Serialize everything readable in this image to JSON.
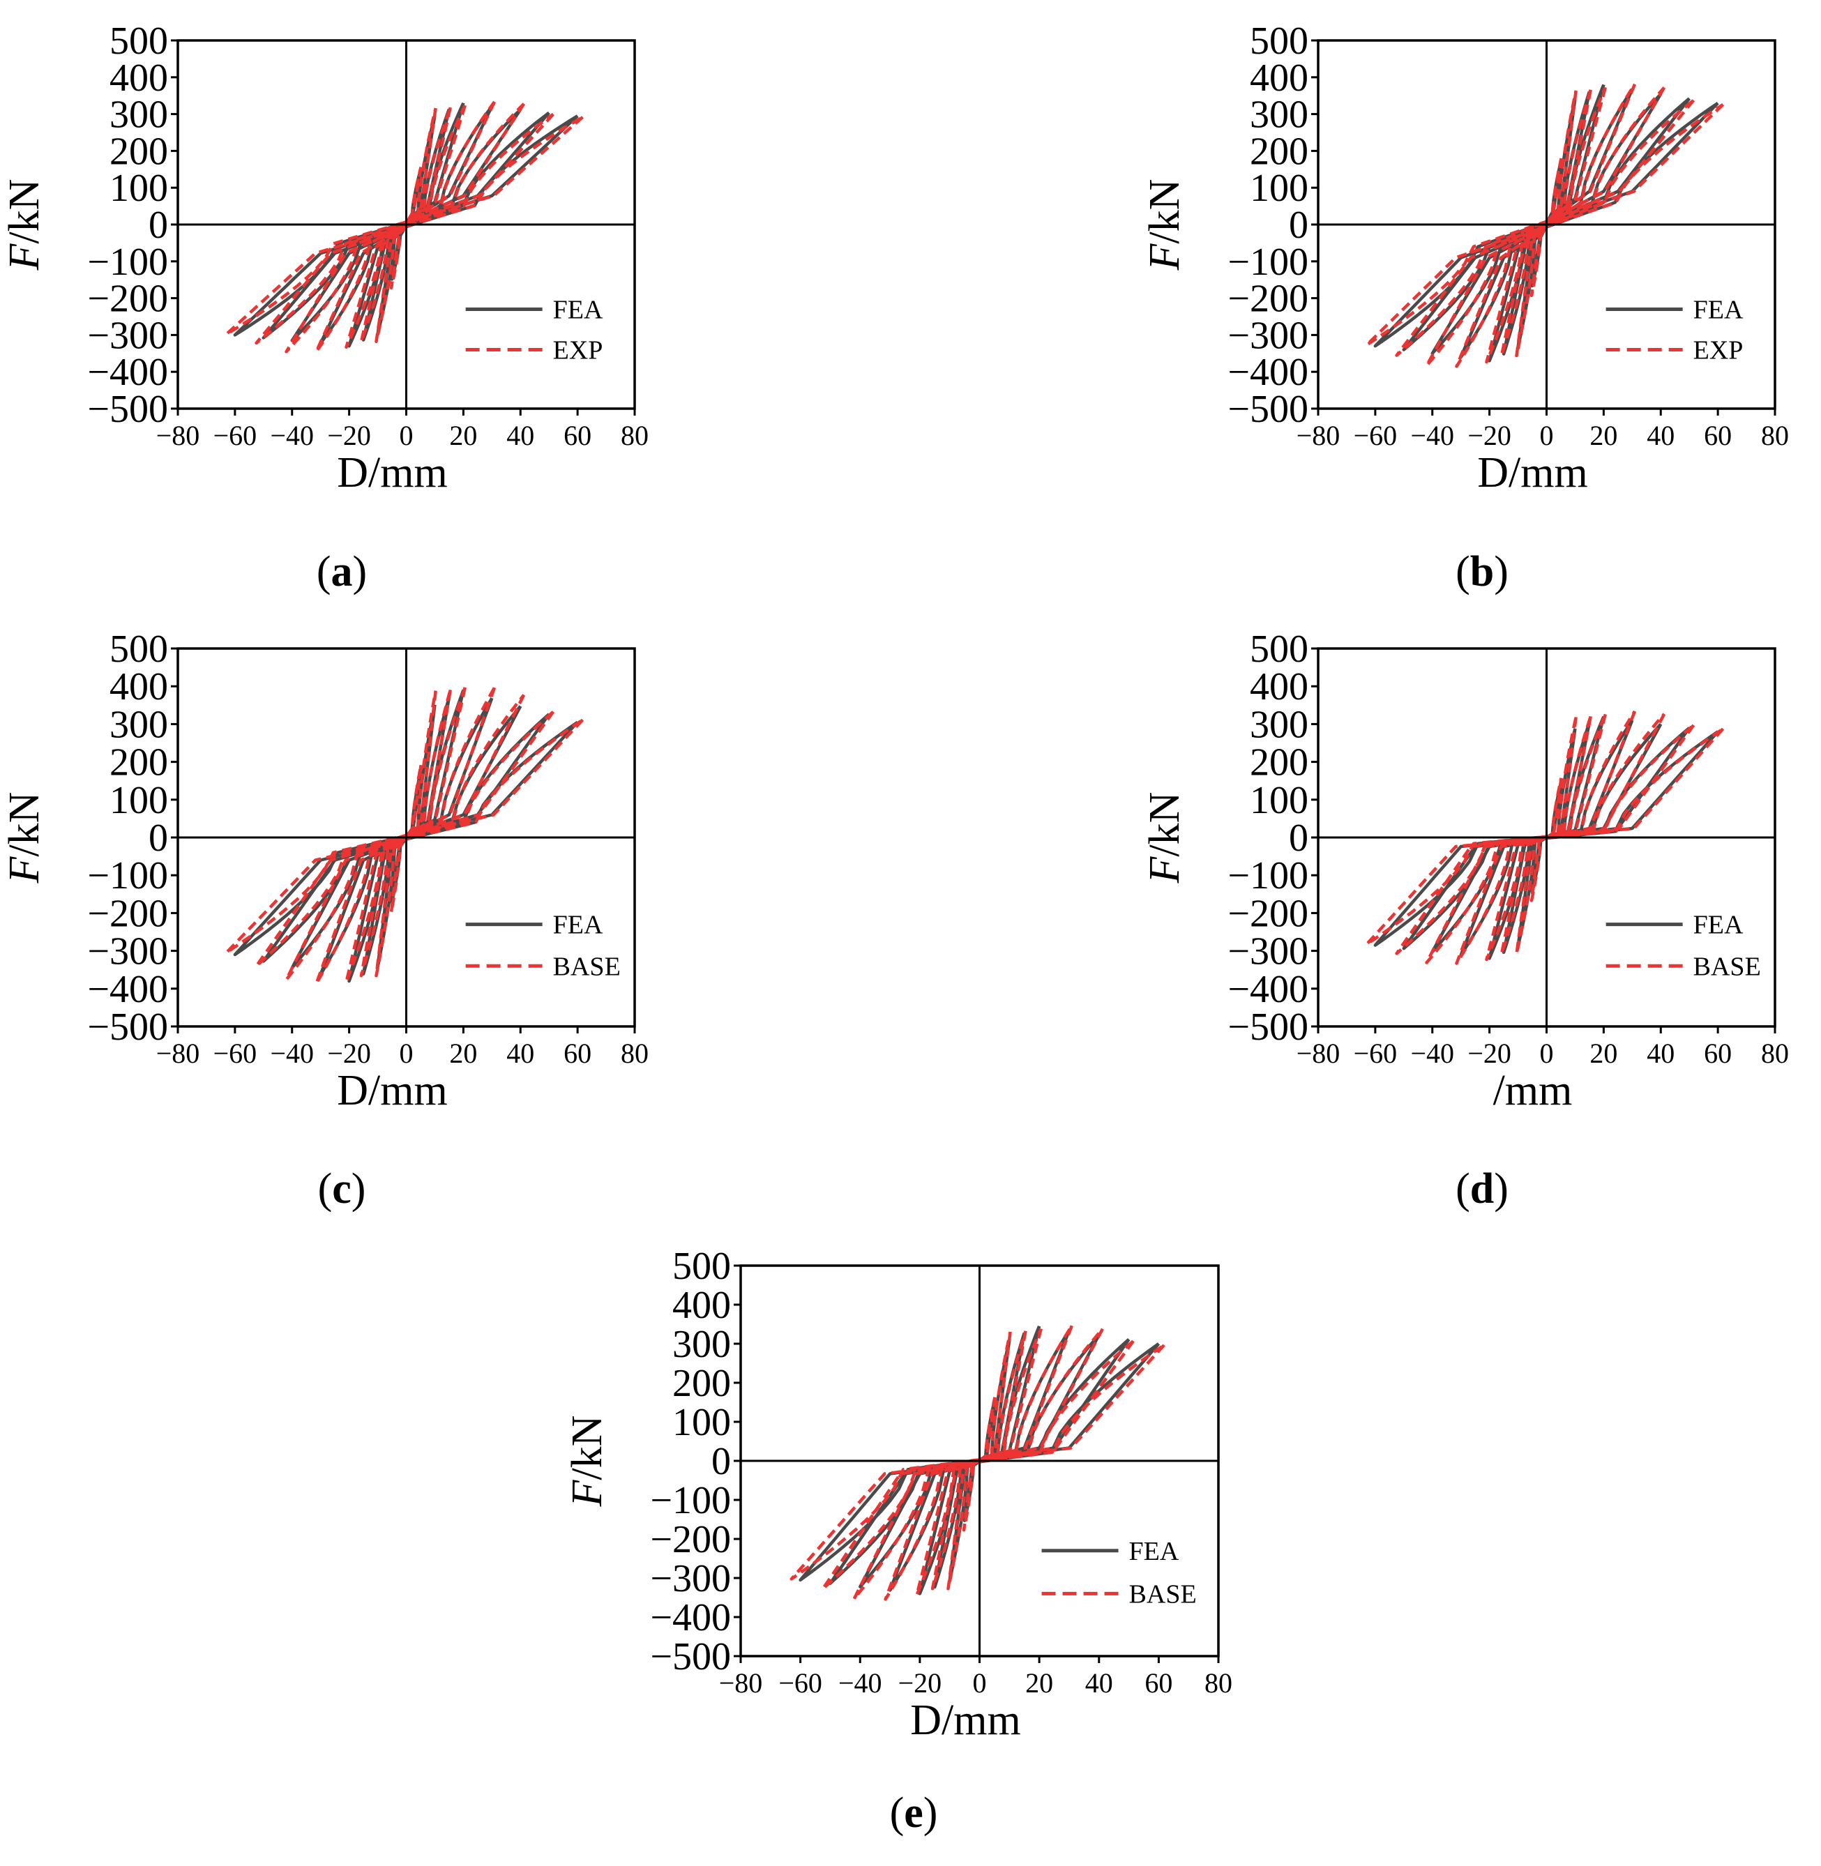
{
  "figure": {
    "panel_letters": [
      "a",
      "b",
      "c",
      "d",
      "e"
    ]
  },
  "colors": {
    "fea": "#4a4a4a",
    "comparison": "#ee3333",
    "axis": "#000000"
  },
  "chart_data": [
    {
      "type": "line",
      "panel": "a",
      "xlabel": "D/mm",
      "ylabel_italic": "F",
      "ylabel_rest": "/kN",
      "xlim": [
        -80,
        80
      ],
      "ylim": [
        -500,
        500
      ],
      "xticks": [
        -80,
        -60,
        -40,
        -20,
        0,
        20,
        40,
        60,
        80
      ],
      "yticks": [
        500,
        400,
        300,
        200,
        100,
        0,
        -100,
        -200,
        -300,
        -400,
        -500
      ],
      "legend_placement": "bottom-right",
      "envelope": {
        "amps": [
          5,
          10,
          15,
          20,
          30,
          40,
          50,
          60
        ],
        "pos_peak": 330,
        "neg_peak": -330,
        "pos_end": 295,
        "neg_end": -300,
        "pinch": 130,
        "exp_scale": 1.05
      },
      "series": [
        {
          "name": "FEA",
          "style": "solid"
        },
        {
          "name": "EXP",
          "style": "dashed"
        }
      ]
    },
    {
      "type": "line",
      "panel": "b",
      "xlabel": "D/mm",
      "ylabel_italic": "F",
      "ylabel_rest": "/kN",
      "xlim": [
        -80,
        80
      ],
      "ylim": [
        -500,
        500
      ],
      "xticks": [
        -80,
        -60,
        -40,
        -20,
        0,
        20,
        40,
        60,
        80
      ],
      "yticks": [
        500,
        400,
        300,
        200,
        100,
        0,
        -100,
        -200,
        -300,
        -400,
        -500
      ],
      "legend_placement": "bottom-right",
      "envelope": {
        "amps": [
          5,
          10,
          15,
          20,
          30,
          40,
          50,
          60
        ],
        "pos_peak": 380,
        "neg_peak": -370,
        "pos_end": 330,
        "neg_end": -330,
        "pinch": 150,
        "exp_scale": 1.07
      },
      "series": [
        {
          "name": "FEA",
          "style": "solid"
        },
        {
          "name": "EXP",
          "style": "dashed"
        }
      ]
    },
    {
      "type": "line",
      "panel": "c",
      "xlabel": "D/mm",
      "ylabel_italic": "F",
      "ylabel_rest": "/kN",
      "xlim": [
        -80,
        80
      ],
      "ylim": [
        -500,
        500
      ],
      "xticks": [
        -80,
        -60,
        -40,
        -20,
        0,
        20,
        40,
        60,
        80
      ],
      "yticks": [
        500,
        400,
        300,
        200,
        100,
        0,
        -100,
        -200,
        -300,
        -400,
        -500
      ],
      "legend_placement": "bottom-right",
      "envelope": {
        "amps": [
          5,
          10,
          15,
          20,
          30,
          40,
          50,
          60
        ],
        "pos_peak": 390,
        "neg_peak": -380,
        "pos_end": 305,
        "neg_end": -310,
        "pinch": 100,
        "exp_scale": 1.12
      },
      "series": [
        {
          "name": "FEA",
          "style": "solid"
        },
        {
          "name": "BASE",
          "style": "dashed"
        }
      ]
    },
    {
      "type": "line",
      "panel": "d",
      "xlabel": "/mm",
      "ylabel_italic": "F",
      "ylabel_rest": "/kN",
      "xlim": [
        -80,
        80
      ],
      "ylim": [
        -500,
        500
      ],
      "xticks": [
        -80,
        -60,
        -40,
        -20,
        0,
        20,
        40,
        60,
        80
      ],
      "yticks": [
        500,
        400,
        300,
        200,
        100,
        0,
        -100,
        -200,
        -300,
        -400,
        -500
      ],
      "legend_placement": "bottom-right",
      "envelope": {
        "amps": [
          5,
          10,
          15,
          20,
          30,
          40,
          50,
          60
        ],
        "pos_peak": 320,
        "neg_peak": -320,
        "pos_end": 280,
        "neg_end": -285,
        "pinch": 40,
        "exp_scale": 1.1
      },
      "series": [
        {
          "name": "FEA",
          "style": "solid"
        },
        {
          "name": "BASE",
          "style": "dashed"
        }
      ]
    },
    {
      "type": "line",
      "panel": "e",
      "xlabel": "D/mm",
      "ylabel_italic": "F",
      "ylabel_rest": "/kN",
      "xlim": [
        -80,
        80
      ],
      "ylim": [
        -500,
        500
      ],
      "xticks": [
        -80,
        -60,
        -40,
        -20,
        0,
        20,
        40,
        60,
        80
      ],
      "yticks": [
        500,
        400,
        300,
        200,
        100,
        0,
        -100,
        -200,
        -300,
        -400,
        -500
      ],
      "legend_placement": "bottom-right",
      "envelope": {
        "amps": [
          5,
          10,
          15,
          20,
          30,
          40,
          50,
          60
        ],
        "pos_peak": 345,
        "neg_peak": -340,
        "pos_end": 300,
        "neg_end": -305,
        "pinch": 55,
        "exp_scale": 1.08
      },
      "series": [
        {
          "name": "FEA",
          "style": "solid"
        },
        {
          "name": "BASE",
          "style": "dashed"
        }
      ]
    }
  ]
}
